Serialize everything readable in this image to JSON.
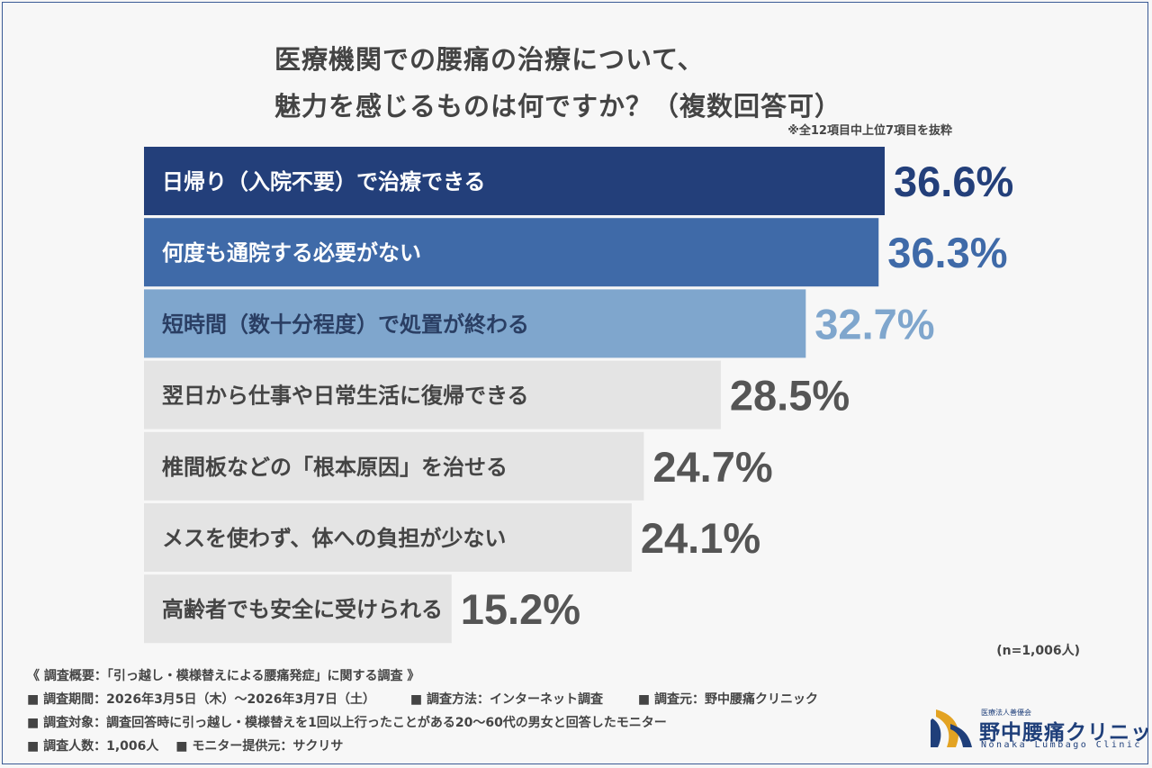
{
  "title_lines": [
    "医療機関での腰痛の治療について、",
    "魅力を感じるものは何ですか？（複数回答可）"
  ],
  "note": "※全12項目中上位7項目を抜粋",
  "sample_size": "(n=1,006人)",
  "chart_data": {
    "type": "bar",
    "orientation": "horizontal",
    "categories": [
      "日帰り（入院不要）で治療できる",
      "何度も通院する必要がない",
      "短時間（数十分程度）で処置が終わる",
      "翌日から仕事や日常生活に復帰できる",
      "椎間板などの「根本原因」を治せる",
      "メスを使わず、体への負担が少ない",
      "高齢者でも安全に受けられる"
    ],
    "values": [
      36.6,
      36.3,
      32.7,
      28.5,
      24.7,
      24.1,
      15.2
    ],
    "value_labels": [
      "36.6%",
      "36.3%",
      "32.7%",
      "28.5%",
      "24.7%",
      "24.1%",
      "15.2%"
    ],
    "bar_colors": [
      "#233f7a",
      "#3f6aa8",
      "#7fa6cd",
      "#e4e4e4",
      "#e4e4e4",
      "#e4e4e4",
      "#e4e4e4"
    ],
    "label_colors": [
      "#ffffff",
      "#ffffff",
      "#2a3e63",
      "#444444",
      "#444444",
      "#444444",
      "#444444"
    ],
    "value_colors": [
      "#233f7a",
      "#3f6aa8",
      "#7fa6cd",
      "#555555",
      "#555555",
      "#555555",
      "#555555"
    ],
    "unit": "%",
    "xlim": [
      0,
      36.6
    ]
  },
  "footer": {
    "heading": "《 調査概要：「引っ越し・模様替えによる腰痛発症」に関する調査 》",
    "period": "■ 調査期間：2026年3月5日（木）〜2026年3月7日（土）",
    "method": "■ 調査方法：インターネット調査",
    "source": "■ 調査元：野中腰痛クリニック",
    "target": "■ 調査対象：調査回答時に引っ越し・模様替えを1回以上行ったことがある20〜60代の男女と回答したモニター",
    "count": "■ 調査人数：1,006人",
    "provider": "■ モニター提供元：サクリサ"
  },
  "logo": {
    "sub": "医療法人善優会",
    "name": "野中腰痛クリニック",
    "en": "Nonaka Lumbago Clinic",
    "colors": {
      "navy": "#1f3f7a",
      "gold": "#e3a323"
    }
  }
}
